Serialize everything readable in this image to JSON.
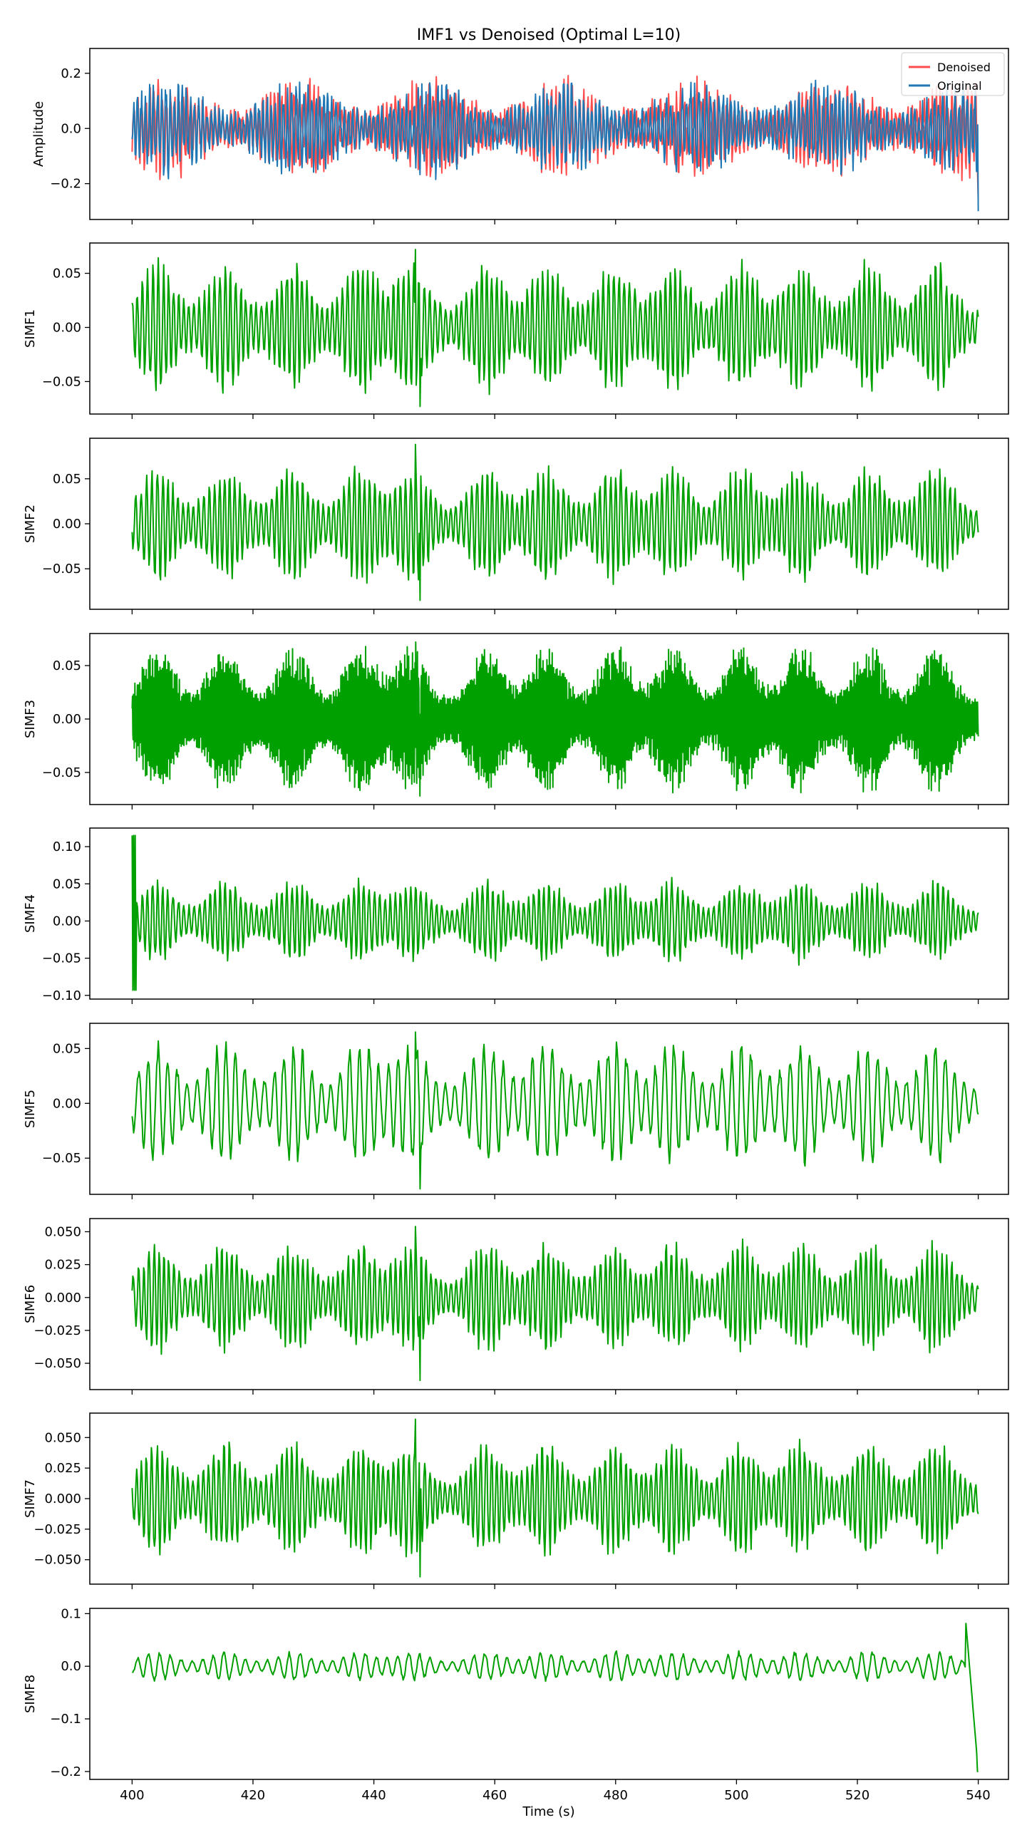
{
  "figure": {
    "title": "IMF1 vs Denoised (Optimal L=10)",
    "xlabel": "Time (s)",
    "colors": {
      "denoised": "#ff4d4d",
      "original": "#1f77b4",
      "simf": "#00a000",
      "axes": "#000000",
      "background": "#ffffff"
    }
  },
  "chart_data": [
    {
      "type": "line",
      "title": "IMF1 vs Denoised (Optimal L=10)",
      "ylabel": "Amplitude",
      "xlim": [
        393,
        545
      ],
      "ylim": [
        -0.33,
        0.29
      ],
      "yticks": [
        -0.2,
        0.0,
        0.2
      ],
      "ytick_labels": [
        "−0.2",
        "0.0",
        "0.2"
      ],
      "legend": {
        "placement": "top-right",
        "entries": [
          "Denoised",
          "Original"
        ]
      },
      "series": [
        {
          "name": "Denoised",
          "color": "#ff4d4d",
          "t_start": 400,
          "t_end": 540,
          "amplitude": 0.22,
          "end_value": -0.26,
          "style": "broadband"
        },
        {
          "name": "Original",
          "color": "#1f77b4",
          "t_start": 400,
          "t_end": 540,
          "amplitude": 0.21,
          "end_value": -0.3,
          "style": "broadband"
        }
      ]
    },
    {
      "type": "line",
      "ylabel": "SIMF1",
      "xlim": [
        393,
        545
      ],
      "ylim": [
        -0.08,
        0.078
      ],
      "yticks": [
        -0.05,
        0.0,
        0.05
      ],
      "ytick_labels": [
        "−0.05",
        "0.00",
        "0.05"
      ],
      "series": [
        {
          "color": "#00a000",
          "t_start": 400,
          "t_end": 540,
          "amplitude": 0.065,
          "peak": 0.072,
          "trough": -0.073,
          "style": "bursty"
        }
      ]
    },
    {
      "type": "line",
      "ylabel": "SIMF2",
      "xlim": [
        393,
        545
      ],
      "ylim": [
        -0.095,
        0.095
      ],
      "yticks": [
        -0.05,
        0.0,
        0.05
      ],
      "ytick_labels": [
        "−0.05",
        "0.00",
        "0.05"
      ],
      "series": [
        {
          "color": "#00a000",
          "t_start": 400,
          "t_end": 540,
          "amplitude": 0.07,
          "peak": 0.088,
          "trough": -0.085,
          "style": "bursty"
        }
      ]
    },
    {
      "type": "line",
      "ylabel": "SIMF3",
      "xlim": [
        393,
        545
      ],
      "ylim": [
        -0.08,
        0.08
      ],
      "yticks": [
        -0.05,
        0.0,
        0.05
      ],
      "ytick_labels": [
        "−0.05",
        "0.00",
        "0.05"
      ],
      "series": [
        {
          "color": "#00a000",
          "t_start": 400,
          "t_end": 540,
          "amplitude": 0.07,
          "peak": 0.072,
          "trough": -0.072,
          "style": "dense-bursts"
        }
      ]
    },
    {
      "type": "line",
      "ylabel": "SIMF4",
      "xlim": [
        393,
        545
      ],
      "ylim": [
        -0.105,
        0.125
      ],
      "yticks": [
        -0.1,
        -0.05,
        0.0,
        0.05,
        0.1
      ],
      "ytick_labels": [
        "−0.10",
        "−0.05",
        "0.00",
        "0.05",
        "0.10"
      ],
      "series": [
        {
          "color": "#00a000",
          "t_start": 400,
          "t_end": 540,
          "amplitude": 0.06,
          "peak": 0.115,
          "trough": -0.093,
          "style": "spike-start"
        }
      ]
    },
    {
      "type": "line",
      "ylabel": "SIMF5",
      "xlim": [
        393,
        545
      ],
      "ylim": [
        -0.083,
        0.073
      ],
      "yticks": [
        -0.05,
        0.0,
        0.05
      ],
      "ytick_labels": [
        "−0.05",
        "0.00",
        "0.05"
      ],
      "series": [
        {
          "color": "#00a000",
          "t_start": 400,
          "t_end": 540,
          "amplitude": 0.06,
          "peak": 0.065,
          "trough": -0.078,
          "style": "bursty-slow"
        }
      ]
    },
    {
      "type": "line",
      "ylabel": "SIMF6",
      "xlim": [
        393,
        545
      ],
      "ylim": [
        -0.07,
        0.06
      ],
      "yticks": [
        -0.05,
        -0.025,
        0.0,
        0.025,
        0.05
      ],
      "ytick_labels": [
        "−0.050",
        "−0.025",
        "0.000",
        "0.025",
        "0.050"
      ],
      "series": [
        {
          "color": "#00a000",
          "t_start": 400,
          "t_end": 540,
          "amplitude": 0.045,
          "peak": 0.054,
          "trough": -0.063,
          "style": "bursty"
        }
      ]
    },
    {
      "type": "line",
      "ylabel": "SIMF7",
      "xlim": [
        393,
        545
      ],
      "ylim": [
        -0.07,
        0.07
      ],
      "yticks": [
        -0.05,
        -0.025,
        0.0,
        0.025,
        0.05
      ],
      "ytick_labels": [
        "−0.050",
        "−0.025",
        "0.000",
        "0.025",
        "0.050"
      ],
      "series": [
        {
          "color": "#00a000",
          "t_start": 400,
          "t_end": 540,
          "amplitude": 0.05,
          "peak": 0.065,
          "trough": -0.064,
          "style": "bursty"
        }
      ]
    },
    {
      "type": "line",
      "ylabel": "SIMF8",
      "xlim": [
        393,
        545
      ],
      "ylim": [
        -0.215,
        0.11
      ],
      "yticks": [
        -0.2,
        -0.1,
        0.0,
        0.1
      ],
      "ytick_labels": [
        "−0.2",
        "−0.1",
        "0.0",
        "0.1"
      ],
      "xticks": [
        400,
        420,
        440,
        460,
        480,
        500,
        520,
        540
      ],
      "xtick_labels": [
        "400",
        "420",
        "440",
        "460",
        "480",
        "500",
        "520",
        "540"
      ],
      "xlabel": "Time (s)",
      "series": [
        {
          "color": "#00a000",
          "t_start": 400,
          "t_end": 540,
          "amplitude": 0.03,
          "peak": 0.09,
          "trough": -0.2,
          "style": "end-spike"
        }
      ]
    }
  ]
}
